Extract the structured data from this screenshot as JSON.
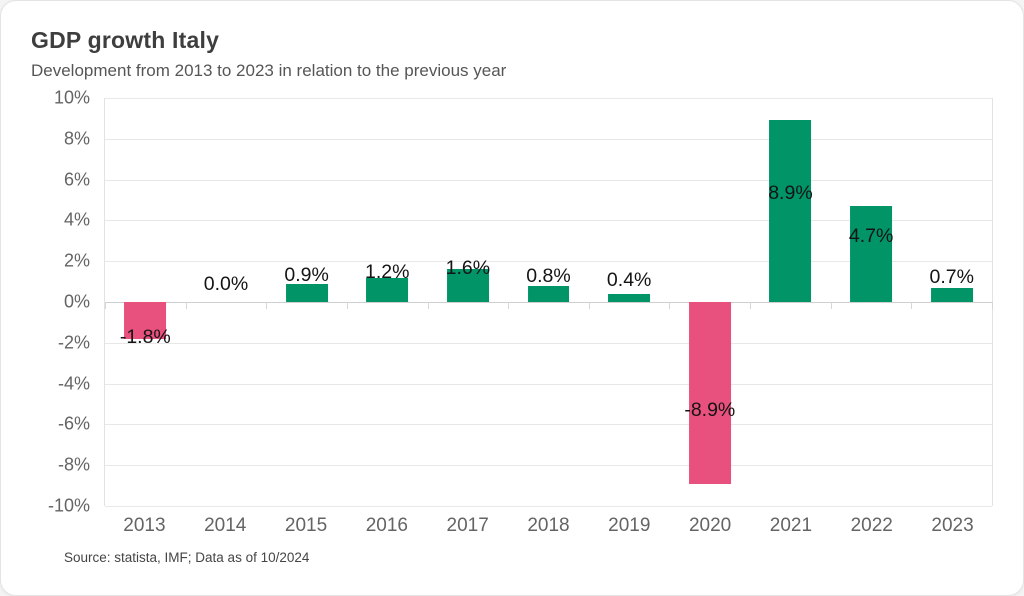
{
  "card": {
    "title": "GDP growth Italy",
    "subtitle": "Development from 2013 to 2023 in relation to the previous year",
    "source": "Source: statista, IMF; Data as of 10/2024"
  },
  "colors": {
    "positive_bar": "#009467",
    "negative_bar": "#e8507d",
    "gridline": "#e8e8e8",
    "axis_text": "#646464",
    "value_label_text": "#141414"
  },
  "chart_data": {
    "type": "bar",
    "title": "GDP growth Italy",
    "subtitle": "Development from 2013 to 2023 in relation to the previous year",
    "categories": [
      "2013",
      "2014",
      "2015",
      "2016",
      "2017",
      "2018",
      "2019",
      "2020",
      "2021",
      "2022",
      "2023"
    ],
    "values": [
      -1.8,
      0.0,
      0.9,
      1.2,
      1.6,
      0.8,
      0.4,
      -8.9,
      8.9,
      4.7,
      0.7
    ],
    "value_labels": [
      "-1.8%",
      "0.0%",
      "0.9%",
      "1.2%",
      "1.6%",
      "0.8%",
      "0.4%",
      "-8.9%",
      "8.9%",
      "4.7%",
      "0.7%"
    ],
    "xlabel": "",
    "ylabel": "",
    "ylim": [
      -10,
      10
    ],
    "ytick_labels": [
      "10%",
      "8%",
      "6%",
      "4%",
      "2%",
      "0%",
      "-2%",
      "-4%",
      "-6%",
      "-8%",
      "-10%"
    ],
    "ytick_values": [
      10,
      8,
      6,
      4,
      2,
      0,
      -2,
      -4,
      -6,
      -8,
      -10
    ],
    "grid": true,
    "legend": false,
    "source": "Source: statista, IMF; Data as of 10/2024"
  }
}
